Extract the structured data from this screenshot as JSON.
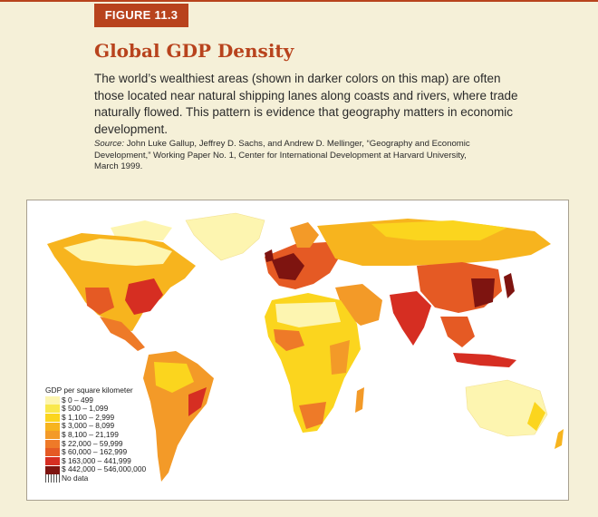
{
  "figure_label": "FIGURE 11.3",
  "title": "Global GDP Density",
  "description": "The world’s wealthiest areas (shown in darker colors on this map) are often those located near natural shipping lanes along coasts and rivers, where trade naturally flowed. This pattern is evidence that geography matters in economic development.",
  "source": {
    "label": "Source:",
    "text": "John Luke Gallup, Jeffrey D. Sachs, and Andrew D. Mellinger, “Geography and Economic Development,” Working Paper No. 1, Center for International Development at Harvard University, March 1999."
  },
  "colors": {
    "accent": "#b8431d",
    "background": "#f5f0d8"
  },
  "legend": {
    "title": "GDP per square kilometer",
    "items": [
      {
        "label": "$ 0 – 499",
        "color": "#fdf5b0"
      },
      {
        "label": "$ 500 – 1,099",
        "color": "#f9e84c"
      },
      {
        "label": "$ 1,100 – 2,999",
        "color": "#fbd51e"
      },
      {
        "label": "$ 3,000 – 8,099",
        "color": "#f7b41e"
      },
      {
        "label": "$ 8,100 – 21,199",
        "color": "#f39a28"
      },
      {
        "label": "$ 22,000 – 59,999",
        "color": "#ee7a28"
      },
      {
        "label": "$ 60,000 – 162,999",
        "color": "#e55a24"
      },
      {
        "label": "$ 163,000 – 441,999",
        "color": "#d62e22"
      },
      {
        "label": "$ 442,000 – 546,000,000",
        "color": "#7e1410"
      }
    ],
    "no_data_label": "No data"
  }
}
